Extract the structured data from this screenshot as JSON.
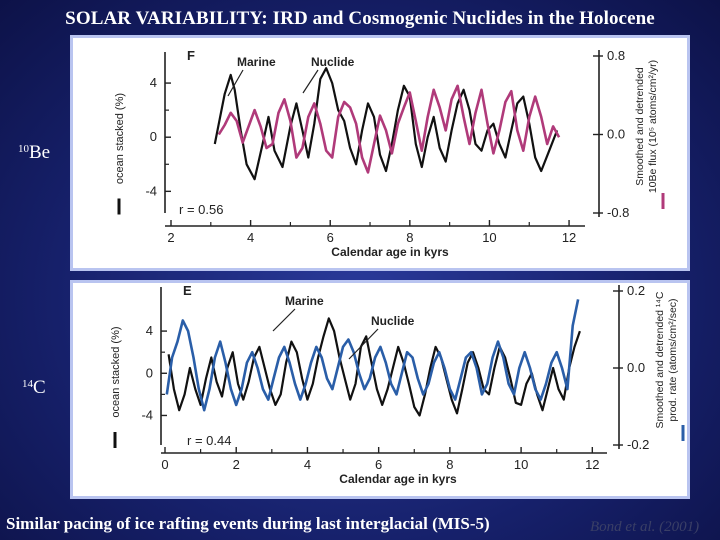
{
  "title": "SOLAR VARIABILITY: IRD and Cosmogenic Nuclides in the Holocene",
  "labels": {
    "be10": {
      "sup": "10",
      "base": "Be"
    },
    "c14": {
      "sup": "14",
      "base": "C"
    }
  },
  "caption": "Similar pacing of ice rafting events during last interglacial (MIS-5)",
  "credit": "Bond et al. (2001)",
  "chart_data": [
    {
      "type": "line",
      "panel_letter": "F",
      "xlabel": "Calendar age in kyrs",
      "ylabel_left": "ocean stacked (%)",
      "ylabel_right": "Smoothed and detrended 10Be flux (10^5 atoms/cm^2/yr)",
      "ylabel_right_lines": [
        "Smoothed and detrended",
        "10Be flux (10⁵ atoms/cm²/yr)"
      ],
      "xlim": [
        2,
        12.3
      ],
      "ylim_left": [
        -5.6,
        6.0
      ],
      "ylim_right": [
        -0.8,
        0.8
      ],
      "x_ticks": [
        "2",
        "4",
        "6",
        "8",
        "10",
        "12"
      ],
      "y_ticks_left": [
        "4",
        "0",
        "-4"
      ],
      "y_ticks_right": [
        "0.8",
        "0.0",
        "-0.8"
      ],
      "legend": [
        "Marine",
        "Nuclide"
      ],
      "annotation": "r = 0.56",
      "series": [
        {
          "name": "Marine",
          "color": "#111111",
          "x": [
            3.1,
            3.2,
            3.35,
            3.5,
            3.6,
            3.75,
            3.9,
            4.1,
            4.3,
            4.45,
            4.6,
            4.8,
            5.0,
            5.15,
            5.3,
            5.45,
            5.6,
            5.75,
            5.9,
            6.05,
            6.2,
            6.35,
            6.5,
            6.65,
            6.8,
            6.95,
            7.1,
            7.25,
            7.4,
            7.55,
            7.7,
            7.85,
            8.0,
            8.15,
            8.3,
            8.45,
            8.6,
            8.75,
            8.9,
            9.05,
            9.2,
            9.35,
            9.5,
            9.65,
            9.8,
            9.95,
            10.1,
            10.25,
            10.4,
            10.55,
            10.7,
            10.85,
            11.0,
            11.15,
            11.3,
            11.5,
            11.7
          ],
          "y": [
            -0.5,
            1.0,
            3.2,
            4.6,
            3.5,
            0.5,
            -2.0,
            -3.1,
            -0.5,
            1.5,
            -1.0,
            -2.2,
            0.8,
            2.5,
            0.5,
            -1.5,
            1.0,
            4.3,
            5.1,
            4.0,
            2.0,
            1.2,
            -0.8,
            -2.0,
            0.5,
            2.5,
            1.5,
            -1.3,
            -2.5,
            -0.5,
            2.0,
            3.8,
            3.0,
            -0.5,
            -2.2,
            0.0,
            1.5,
            -0.8,
            -1.8,
            0.5,
            2.5,
            3.5,
            2.0,
            -0.5,
            -1.0,
            0.5,
            1.0,
            -0.5,
            -1.5,
            0.5,
            2.5,
            3.0,
            1.0,
            -1.5,
            -2.5,
            -1.0,
            0.5
          ]
        },
        {
          "name": "Nuclide",
          "color": "#b03a7a",
          "x": [
            3.2,
            3.35,
            3.5,
            3.65,
            3.8,
            3.95,
            4.1,
            4.25,
            4.4,
            4.55,
            4.7,
            4.85,
            5.0,
            5.15,
            5.3,
            5.45,
            5.6,
            5.75,
            5.9,
            6.05,
            6.2,
            6.35,
            6.5,
            6.65,
            6.8,
            6.95,
            7.1,
            7.25,
            7.4,
            7.55,
            7.7,
            7.85,
            8.0,
            8.15,
            8.3,
            8.45,
            8.6,
            8.75,
            8.9,
            9.05,
            9.2,
            9.35,
            9.5,
            9.65,
            9.8,
            9.95,
            10.1,
            10.25,
            10.4,
            10.55,
            10.7,
            10.85,
            11.0,
            11.15,
            11.3,
            11.45,
            11.6,
            11.75
          ],
          "y": [
            0.2,
            0.9,
            1.8,
            1.2,
            -0.4,
            0.8,
            2.0,
            0.8,
            -0.8,
            -0.5,
            1.8,
            2.8,
            1.2,
            -1.5,
            -0.8,
            1.5,
            2.5,
            1.0,
            -1.0,
            -1.5,
            1.5,
            2.6,
            2.2,
            1.0,
            -1.5,
            -2.6,
            -0.5,
            1.6,
            0.5,
            -1.2,
            1.0,
            2.2,
            3.3,
            1.2,
            -1.0,
            1.5,
            3.5,
            2.2,
            0.5,
            2.8,
            3.8,
            1.5,
            -0.5,
            1.8,
            3.5,
            1.0,
            -1.2,
            0.5,
            2.6,
            3.4,
            0.5,
            -1.0,
            1.5,
            3.0,
            1.5,
            -0.5,
            0.8,
            0.0
          ]
        }
      ]
    },
    {
      "type": "line",
      "panel_letter": "E",
      "xlabel": "Calendar age in kyrs",
      "ylabel_left": "ocean stacked (%)",
      "ylabel_right": "Smoothed and detrended 14C prod. rate (atoms/cm^2/sec)",
      "ylabel_right_lines": [
        "Smoothed and detrended ¹⁴C",
        "prod. rate (atoms/cm²/sec)"
      ],
      "xlim": [
        0,
        12.3
      ],
      "ylim_left": [
        -6.8,
        7.8
      ],
      "ylim_right": [
        -0.2,
        0.2
      ],
      "x_ticks": [
        "0",
        "2",
        "4",
        "6",
        "8",
        "10",
        "12"
      ],
      "y_ticks_left": [
        "4",
        "0",
        "-4"
      ],
      "y_ticks_right": [
        "0.2",
        "0.0",
        "-0.2"
      ],
      "legend": [
        "Marine",
        "Nuclide"
      ],
      "annotation": "r = 0.44",
      "series": [
        {
          "name": "Marine",
          "color": "#111111",
          "x": [
            0.1,
            0.25,
            0.4,
            0.55,
            0.7,
            0.85,
            1.0,
            1.15,
            1.3,
            1.45,
            1.6,
            1.75,
            1.9,
            2.05,
            2.2,
            2.35,
            2.5,
            2.65,
            2.8,
            2.95,
            3.1,
            3.25,
            3.4,
            3.55,
            3.7,
            3.85,
            4.0,
            4.15,
            4.3,
            4.45,
            4.6,
            4.75,
            4.9,
            5.05,
            5.2,
            5.35,
            5.5,
            5.65,
            5.8,
            5.95,
            6.1,
            6.25,
            6.4,
            6.55,
            6.7,
            6.85,
            7.0,
            7.15,
            7.3,
            7.45,
            7.6,
            7.75,
            7.9,
            8.05,
            8.2,
            8.35,
            8.5,
            8.65,
            8.8,
            8.95,
            9.1,
            9.25,
            9.4,
            9.55,
            9.7,
            9.85,
            10.0,
            10.15,
            10.3,
            10.45,
            10.6,
            10.75,
            10.9,
            11.05,
            11.2,
            11.35,
            11.5,
            11.65
          ],
          "y": [
            1.8,
            -1.5,
            -3.5,
            -2.0,
            0.5,
            -1.5,
            -3.0,
            -0.5,
            1.5,
            -0.8,
            -2.2,
            0.5,
            2.0,
            -1.0,
            -2.5,
            -0.8,
            1.5,
            2.5,
            0.5,
            -1.5,
            -3.0,
            -2.0,
            1.0,
            3.0,
            2.0,
            -0.5,
            -2.5,
            -1.0,
            1.5,
            3.5,
            5.2,
            4.0,
            1.5,
            -0.5,
            -2.5,
            -1.0,
            2.5,
            3.5,
            1.0,
            -1.5,
            -3.0,
            -1.5,
            0.5,
            2.5,
            1.0,
            -1.0,
            -3.2,
            -4.0,
            -2.0,
            0.5,
            2.5,
            1.5,
            -0.5,
            -2.5,
            -3.8,
            -1.5,
            1.0,
            2.0,
            0.5,
            -1.5,
            -2.0,
            0.5,
            2.5,
            1.5,
            -0.5,
            -2.8,
            -3.0,
            -1.0,
            0.0,
            -2.0,
            -3.5,
            -1.5,
            0.5,
            -1.5,
            -2.5,
            0.5,
            2.5,
            4.0
          ]
        },
        {
          "name": "Nuclide",
          "color": "#2a5ea8",
          "x": [
            0.05,
            0.2,
            0.35,
            0.5,
            0.65,
            0.8,
            0.95,
            1.1,
            1.25,
            1.4,
            1.55,
            1.7,
            1.85,
            2.0,
            2.15,
            2.3,
            2.45,
            2.6,
            2.75,
            2.9,
            3.05,
            3.2,
            3.35,
            3.5,
            3.65,
            3.8,
            3.95,
            4.1,
            4.25,
            4.4,
            4.55,
            4.7,
            4.85,
            5.0,
            5.15,
            5.3,
            5.45,
            5.6,
            5.75,
            5.9,
            6.05,
            6.2,
            6.35,
            6.5,
            6.65,
            6.8,
            6.95,
            7.1,
            7.25,
            7.4,
            7.55,
            7.7,
            7.85,
            8.0,
            8.15,
            8.3,
            8.45,
            8.6,
            8.75,
            8.9,
            9.05,
            9.2,
            9.35,
            9.5,
            9.65,
            9.8,
            9.95,
            10.1,
            10.25,
            10.4,
            10.55,
            10.7,
            10.85,
            11.0,
            11.15,
            11.3,
            11.45,
            11.6
          ],
          "y": [
            -2.0,
            1.5,
            3.0,
            5.0,
            4.0,
            1.5,
            -1.5,
            -3.5,
            -1.5,
            1.5,
            3.0,
            1.0,
            -1.5,
            -3.0,
            -1.5,
            1.0,
            2.0,
            0.5,
            -1.5,
            -2.5,
            -0.5,
            1.5,
            2.5,
            1.0,
            -1.0,
            -2.5,
            -1.0,
            1.0,
            2.5,
            1.5,
            -0.5,
            -1.5,
            0.5,
            2.5,
            3.2,
            2.0,
            0.0,
            -1.5,
            -0.5,
            1.5,
            2.5,
            1.0,
            -1.0,
            -2.0,
            0.0,
            2.0,
            1.5,
            -0.5,
            -2.0,
            -1.0,
            1.0,
            2.0,
            0.5,
            -1.5,
            -2.5,
            -0.5,
            1.5,
            2.0,
            0.5,
            -2.0,
            -1.0,
            1.5,
            3.0,
            1.5,
            -1.0,
            -2.0,
            0.5,
            2.0,
            0.5,
            -1.5,
            -2.5,
            -1.0,
            1.0,
            2.0,
            0.5,
            -1.5,
            4.5,
            7.0
          ]
        }
      ]
    }
  ]
}
